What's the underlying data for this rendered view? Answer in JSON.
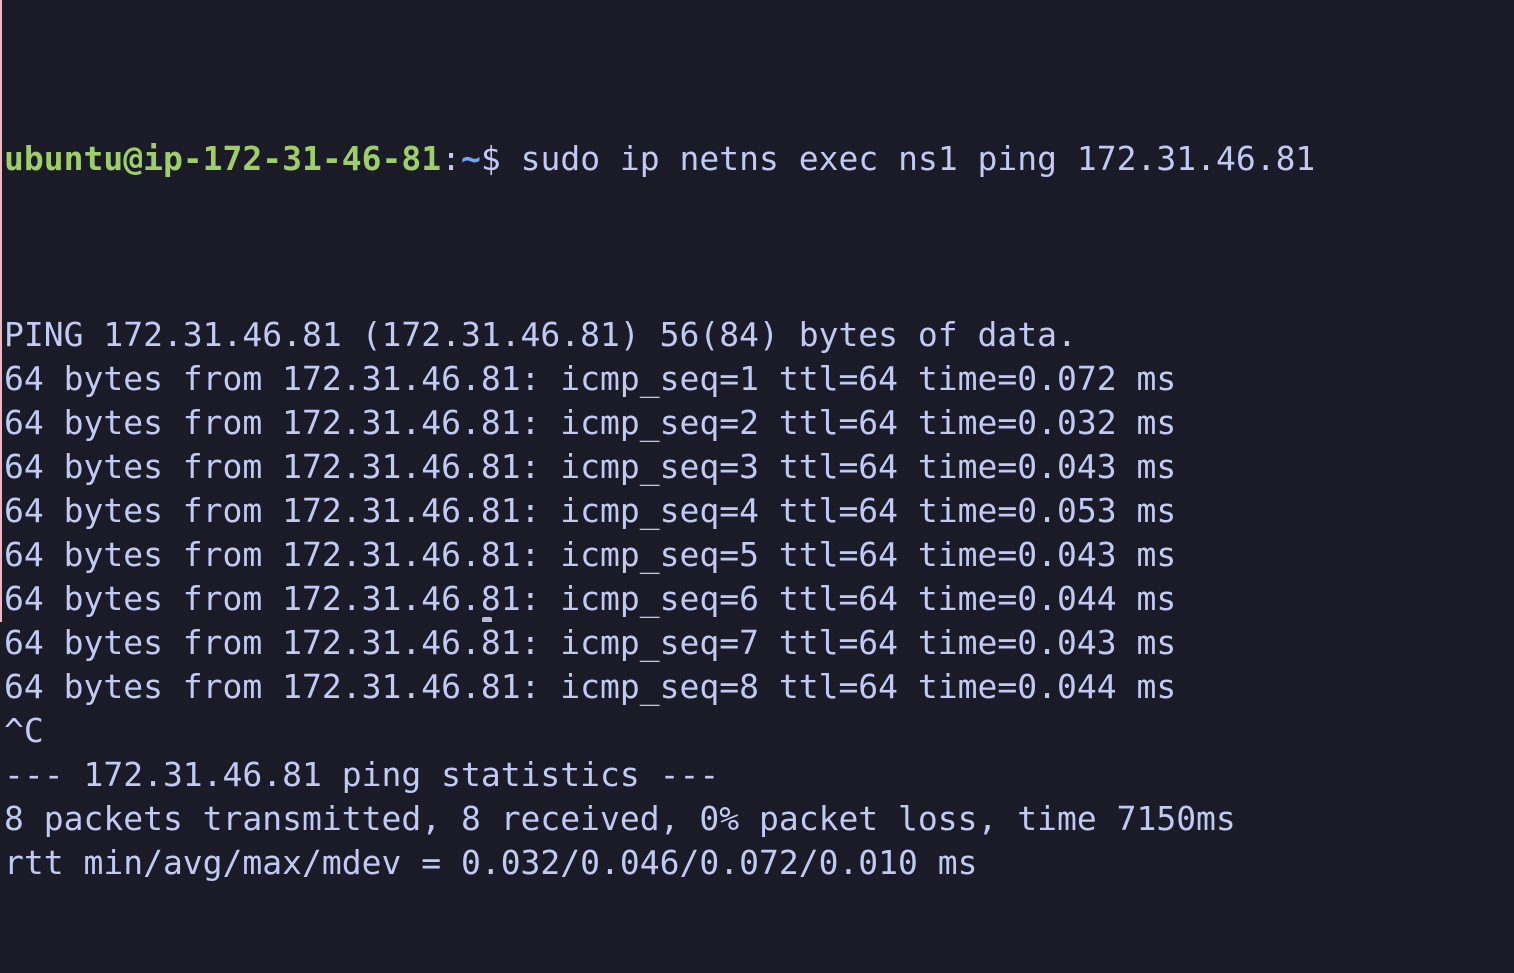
{
  "terminal": {
    "colors": {
      "background": "#1a1b26",
      "foreground": "#c0caf5",
      "prompt_user_host_green": "#9ece6a",
      "prompt_path_blue": "#7aa2f7",
      "left_edge_strip_pink": "#f5b6c2"
    },
    "prompt": {
      "user_host": "ubuntu@ip-172-31-46-81",
      "colon": ":",
      "path": "~",
      "dollar": "$ ",
      "command": "sudo ip netns exec ns1 ping 172.31.46.81"
    },
    "ping": {
      "target": "172.31.46.81",
      "packet_times_ms": [
        0.072,
        0.032,
        0.043,
        0.053,
        0.043,
        0.044,
        0.043,
        0.044
      ],
      "packets_transmitted": 8,
      "packets_received": 8,
      "packet_loss_pct": 0,
      "time_total_ms": 7150,
      "rtt_min": 0.032,
      "rtt_avg": 0.046,
      "rtt_max": 0.072,
      "rtt_mdev": 0.01
    },
    "output_lines": [
      "PING 172.31.46.81 (172.31.46.81) 56(84) bytes of data.",
      "64 bytes from 172.31.46.81: icmp_seq=1 ttl=64 time=0.072 ms",
      "64 bytes from 172.31.46.81: icmp_seq=2 ttl=64 time=0.032 ms",
      "64 bytes from 172.31.46.81: icmp_seq=3 ttl=64 time=0.043 ms",
      "64 bytes from 172.31.46.81: icmp_seq=4 ttl=64 time=0.053 ms",
      "64 bytes from 172.31.46.81: icmp_seq=5 ttl=64 time=0.043 ms",
      "64 bytes from 172.31.46.81: icmp_seq=6 ttl=64 time=0.044 ms",
      "64 bytes from 172.31.46.81: icmp_seq=7 ttl=64 time=0.043 ms",
      "64 bytes from 172.31.46.81: icmp_seq=8 ttl=64 time=0.044 ms",
      "^C",
      "--- 172.31.46.81 ping statistics ---",
      "8 packets transmitted, 8 received, 0% packet loss, time 7150ms",
      "rtt min/avg/max/mdev = 0.032/0.046/0.072/0.010 ms"
    ]
  }
}
